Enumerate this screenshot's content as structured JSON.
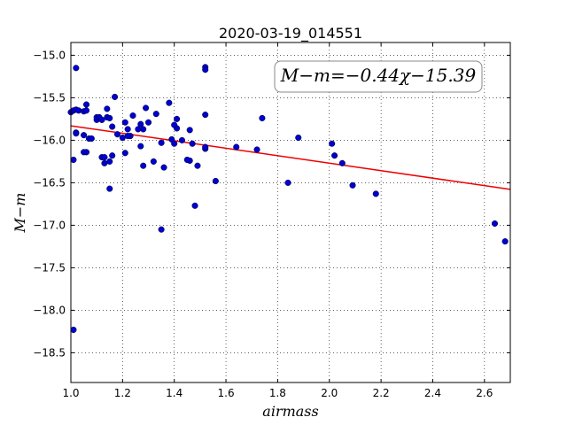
{
  "chart_data": {
    "type": "scatter",
    "title": "2020-03-19_014551",
    "xlabel": "airmass",
    "ylabel": "M−m",
    "xlim": [
      1.0,
      2.7
    ],
    "ylim": [
      -18.85,
      -14.85
    ],
    "y_inverted": true,
    "grid": true,
    "x_ticks": [
      1.0,
      1.2,
      1.4,
      1.6,
      1.8,
      2.0,
      2.2,
      2.4,
      2.6
    ],
    "x_tick_labels": [
      "1.0",
      "1.2",
      "1.4",
      "1.6",
      "1.8",
      "2.0",
      "2.2",
      "2.4",
      "2.6"
    ],
    "y_ticks": [
      -15.0,
      -15.5,
      -16.0,
      -16.5,
      -17.0,
      -17.5,
      -18.0,
      -18.5
    ],
    "y_tick_labels": [
      "−15.0",
      "−15.5",
      "−16.0",
      "−16.5",
      "−17.0",
      "−17.5",
      "−18.0",
      "−18.5"
    ],
    "annotation": "M−m=−0.44χ−15.39",
    "marker_color": "#0000cc",
    "line_color": "#ee0000",
    "fit": {
      "slope": -0.44,
      "intercept": -15.39,
      "x_range": [
        1.0,
        2.7
      ]
    },
    "series": [
      {
        "x": [
          1.0,
          1.01,
          1.02,
          1.02,
          1.03,
          1.05,
          1.06,
          1.06,
          1.07,
          1.02,
          1.05,
          1.06,
          1.08,
          1.1,
          1.1,
          1.11,
          1.12,
          1.14,
          1.14,
          1.15,
          1.17,
          1.18,
          1.16,
          1.12,
          1.05,
          1.02,
          1.01,
          1.13,
          1.15,
          1.16,
          1.13,
          1.15,
          1.21,
          1.22,
          1.24,
          1.21,
          1.23,
          1.26,
          1.27,
          1.28,
          1.29,
          1.3,
          1.33,
          1.27,
          1.22,
          1.2,
          1.28,
          1.32,
          1.36,
          1.35,
          1.35,
          1.38,
          1.39,
          1.4,
          1.41,
          1.41,
          1.4,
          1.43,
          1.46,
          1.46,
          1.47,
          1.45,
          1.49,
          1.52,
          1.52,
          1.52,
          1.52,
          1.52,
          1.48,
          1.56,
          1.64,
          1.72,
          1.74,
          1.84,
          1.88,
          2.01,
          2.02,
          2.05,
          2.09,
          2.18,
          2.64,
          2.68,
          1.01
        ],
        "y": [
          -15.67,
          -15.65,
          -15.15,
          -15.64,
          -15.65,
          -15.66,
          -15.58,
          -15.65,
          -15.98,
          -15.91,
          -15.94,
          -16.14,
          -15.98,
          -15.76,
          -15.73,
          -15.73,
          -15.76,
          -15.73,
          -15.63,
          -15.74,
          -15.49,
          -15.93,
          -15.84,
          -16.2,
          -16.14,
          -15.92,
          -16.23,
          -16.27,
          -16.25,
          -16.18,
          -16.2,
          -16.57,
          -15.79,
          -15.87,
          -15.71,
          -16.15,
          -15.95,
          -15.87,
          -15.81,
          -15.87,
          -15.62,
          -15.79,
          -15.69,
          -16.07,
          -15.95,
          -15.97,
          -16.3,
          -16.25,
          -16.32,
          -16.03,
          -17.05,
          -15.56,
          -15.99,
          -16.04,
          -15.75,
          -15.86,
          -15.82,
          -16.0,
          -15.88,
          -16.24,
          -16.04,
          -16.23,
          -16.3,
          -15.14,
          -15.17,
          -15.7,
          -16.1,
          -16.08,
          -16.77,
          -16.48,
          -16.08,
          -16.11,
          -15.74,
          -16.5,
          -15.97,
          -16.04,
          -16.18,
          -16.27,
          -16.53,
          -16.63,
          -16.98,
          -17.19,
          -18.23
        ]
      }
    ]
  }
}
